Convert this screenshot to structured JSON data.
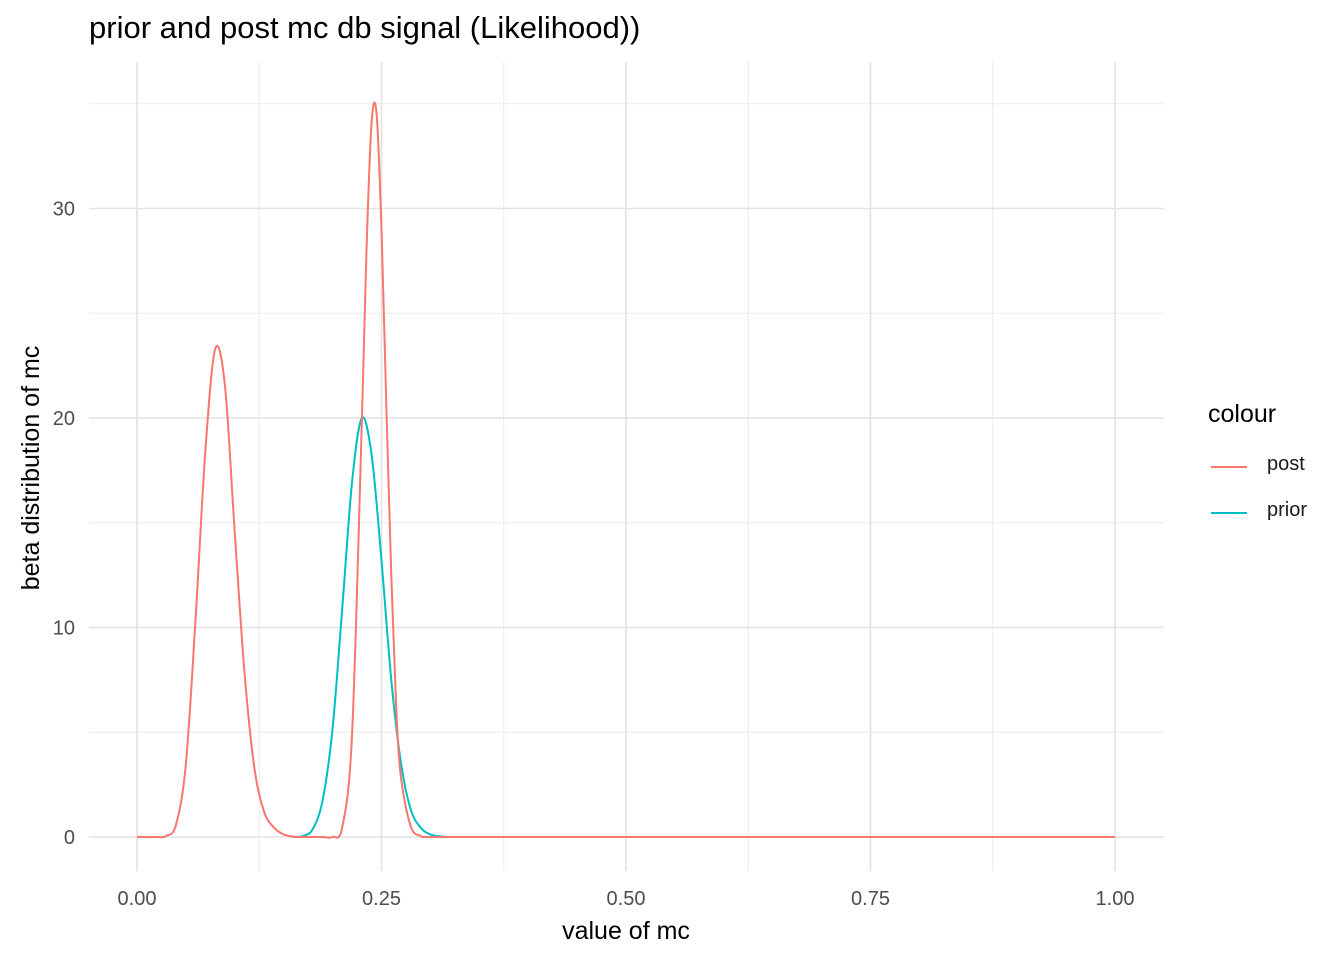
{
  "chart_data": {
    "type": "line",
    "title": "prior and post mc db signal (Likelihood))",
    "xlabel": "value of mc",
    "ylabel": "beta distribution of mc",
    "xlim": [
      0,
      1
    ],
    "ylim": [
      0,
      35
    ],
    "x_ticks": [
      "0.00",
      "0.25",
      "0.50",
      "0.75",
      "1.00"
    ],
    "y_ticks": [
      "0",
      "10",
      "20",
      "30"
    ],
    "grid": true,
    "legend": {
      "title": "colour",
      "position": "right"
    },
    "series": [
      {
        "name": "post",
        "color": "#F8766D",
        "x": [
          0,
          0.02,
          0.03,
          0.04,
          0.05,
          0.06,
          0.07,
          0.08,
          0.09,
          0.1,
          0.11,
          0.12,
          0.13,
          0.14,
          0.15,
          0.16,
          0.17,
          0.18,
          0.19,
          0.2,
          0.21,
          0.22,
          0.23,
          0.235,
          0.24,
          0.245,
          0.25,
          0.255,
          0.26,
          0.265,
          0.27,
          0.28,
          0.29,
          0.3,
          0.35,
          0.5,
          0.75,
          1.0
        ],
        "y": [
          0,
          0,
          0.05,
          0.6,
          3.5,
          10.5,
          18.5,
          23.3,
          21.5,
          14.5,
          7.8,
          3.3,
          1.2,
          0.45,
          0.12,
          0.02,
          0,
          0,
          0,
          0,
          0.5,
          5,
          20,
          28.5,
          34.2,
          34.5,
          29,
          20.5,
          12.5,
          6.2,
          2.8,
          0.5,
          0.05,
          0,
          0,
          0,
          0,
          0
        ]
      },
      {
        "name": "prior",
        "color": "#00BFC4",
        "x": [
          0.16,
          0.17,
          0.18,
          0.19,
          0.2,
          0.21,
          0.22,
          0.23,
          0.24,
          0.25,
          0.26,
          0.27,
          0.28,
          0.29,
          0.3,
          0.31,
          0.32,
          0.325
        ],
        "y": [
          0,
          0.05,
          0.4,
          1.8,
          5.2,
          11,
          17,
          20,
          18.2,
          13.2,
          7.5,
          3.5,
          1.3,
          0.45,
          0.12,
          0.03,
          0,
          0
        ]
      }
    ]
  }
}
